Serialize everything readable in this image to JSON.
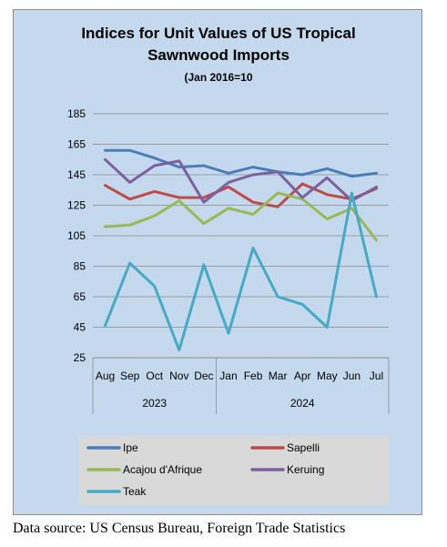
{
  "chart_data": {
    "type": "line",
    "title_lines": [
      "Indices for Unit Values of US Tropical",
      "Sawnwood Imports"
    ],
    "subtitle": "(Jan 2016=10",
    "categories": [
      "Aug",
      "Sep",
      "Oct",
      "Nov",
      "Dec",
      "Jan",
      "Feb",
      "Mar",
      "Apr",
      "May",
      "Jun",
      "Jul"
    ],
    "year_groups": [
      {
        "label": "2023",
        "start": 0,
        "end": 4
      },
      {
        "label": "2024",
        "start": 5,
        "end": 11
      }
    ],
    "ylim": [
      25,
      185
    ],
    "yticks": [
      185,
      165,
      145,
      125,
      105,
      85,
      65,
      45,
      25
    ],
    "grid": true,
    "legend_position": "bottom",
    "series": [
      {
        "name": "Ipe",
        "color": "#4a7ebb",
        "values": [
          161,
          161,
          156,
          150,
          151,
          146,
          150,
          147,
          145,
          149,
          144,
          146
        ]
      },
      {
        "name": "Sapelli",
        "color": "#be4b48",
        "values": [
          138,
          129,
          134,
          130,
          130,
          137,
          127,
          124,
          139,
          132,
          129,
          136
        ]
      },
      {
        "name": "Acajou d'Afrique",
        "color": "#98b954",
        "values": [
          111,
          112,
          118,
          128,
          113,
          123,
          119,
          133,
          129,
          116,
          123,
          102
        ]
      },
      {
        "name": "Keruing",
        "color": "#7d60a0",
        "values": [
          155,
          140,
          151,
          154,
          127,
          140,
          145,
          147,
          130,
          143,
          128,
          137
        ]
      },
      {
        "name": "Teak",
        "color": "#46aac5",
        "values": [
          46,
          87,
          72,
          30,
          86,
          41,
          97,
          65,
          60,
          45,
          133,
          65
        ]
      }
    ]
  },
  "source_text": "Data source: US Census Bureau, Foreign Trade Statistics"
}
